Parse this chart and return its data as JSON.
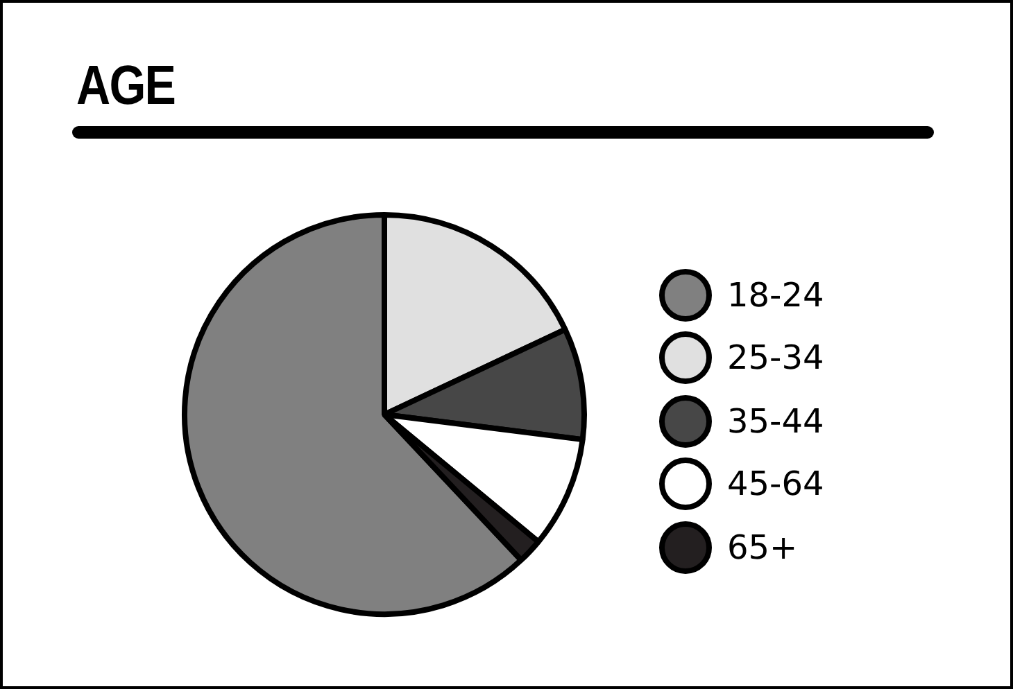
{
  "chart_data": {
    "type": "pie",
    "title": "AGE",
    "categories": [
      "18-24",
      "25-34",
      "35-44",
      "45-64",
      "65+"
    ],
    "values": [
      62,
      18,
      9,
      9,
      2
    ],
    "colors": [
      "#808080",
      "#e0e0e0",
      "#474747",
      "#ffffff",
      "#231f20"
    ],
    "legend": "right"
  }
}
